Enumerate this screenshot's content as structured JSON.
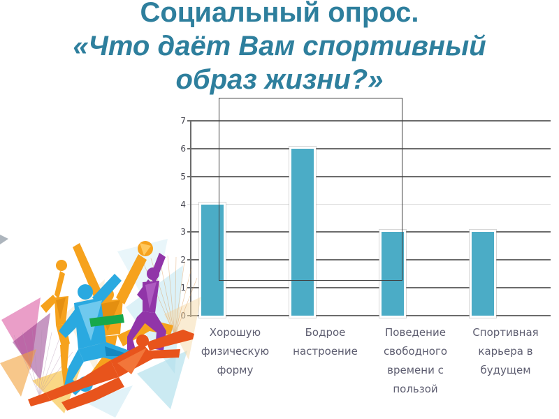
{
  "title": {
    "line1": "Социальный опрос.",
    "line2": "«Что даёт Вам спортивный",
    "line3": "образ жизни?»",
    "color": "#2e7f9d"
  },
  "chart_data": {
    "type": "bar",
    "categories": [
      "Хорошую\nфизическую\nформу",
      "Бодрое\nнастроение",
      "Поведение\nсвободного\nвремени с\nпользой",
      "Спортивная\nкарьера в\nбудущем"
    ],
    "values": [
      4,
      6,
      3,
      3
    ],
    "title": "",
    "xlabel": "",
    "ylabel": "",
    "ylim": [
      0,
      7
    ],
    "yticks": [
      0,
      1,
      2,
      3,
      4,
      5,
      6,
      7
    ],
    "grid": true,
    "legend": false,
    "bar_color": "#4bacc6",
    "bar_outline_color": "#ffffff",
    "gridline_color": "#6b6b6b",
    "gridline_light_color": "#dcdcdc",
    "axis_tick_color": "#45454f",
    "category_label_color": "#5d5d70"
  },
  "annotation": {
    "shape": "rectangle-outline",
    "border_color": "#3e3e3e"
  },
  "illustration": {
    "name": "low-poly-athletes",
    "colors": {
      "amber": "#f6a21d",
      "amber_dark": "#e28d10",
      "blue": "#2aa9e0",
      "blue_light": "#6fc9ee",
      "purple": "#9135a8",
      "red_orange": "#e8541c",
      "green": "#17a84b",
      "magenta": "#d94f9b",
      "pale_cyan": "#c5e8f2",
      "yellow": "#f7c243"
    }
  }
}
